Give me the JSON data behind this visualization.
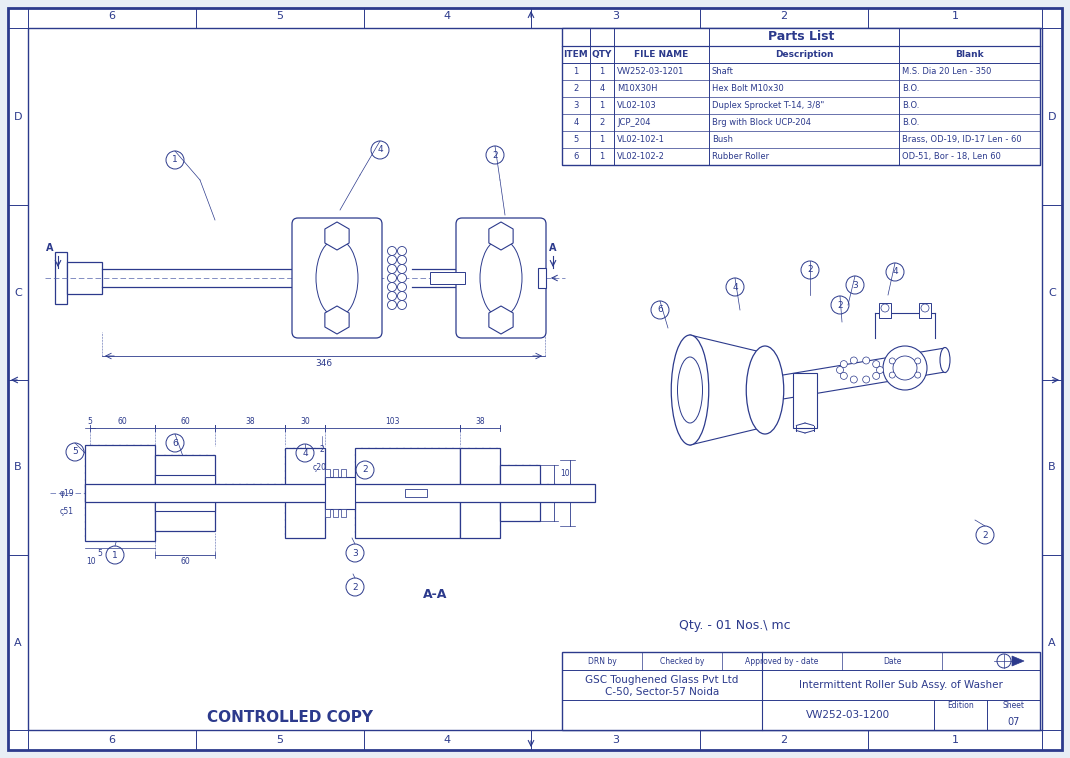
{
  "bg_color": "#e8eef5",
  "drawing_area_color": "#f0f4f8",
  "line_color": "#2c3a8c",
  "border_color": "#2c3a8c",
  "white": "#ffffff",
  "title": "CONTROLLED COPY",
  "parts_list_title": "Parts List",
  "parts_list_headers": [
    "ITEM",
    "QTY",
    "FILE NAME",
    "Description",
    "Blank"
  ],
  "parts_list_rows": [
    [
      "1",
      "1",
      "VW252-03-1201",
      "Shaft",
      "M.S. Dia 20 Len - 350"
    ],
    [
      "2",
      "4",
      "M10X30H",
      "Hex Bolt M10x30",
      "B.O."
    ],
    [
      "3",
      "1",
      "VL02-103",
      "Duplex Sprocket T-14, 3/8\"",
      "B.O."
    ],
    [
      "4",
      "2",
      "JCP_204",
      "Brg with Block UCP-204",
      "B.O."
    ],
    [
      "5",
      "1",
      "VL02-102-1",
      "Bush",
      "Brass, OD-19, ID-17 Len - 60"
    ],
    [
      "6",
      "1",
      "VL02-102-2",
      "Rubber Roller",
      "OD-51, Bor - 18, Len 60"
    ]
  ],
  "title_block": {
    "company": "GSC Toughened Glass Pvt Ltd",
    "address": "C-50, Sector-57 Noida",
    "drawing_title": "Intermittent Roller Sub Assy. of Washer",
    "drawing_number": "VW252-03-1200",
    "edition_label": "Edition",
    "sheet_label": "Sheet",
    "sheet_number": "07",
    "drn_by": "DRN by",
    "checked_by": "Checked by",
    "approved_by": "Approved by - date",
    "date": "Date"
  },
  "row_labels_top": [
    "6",
    "5",
    "4",
    "3",
    "2",
    "1"
  ],
  "col_labels_left": [
    "D",
    "C",
    "B",
    "A"
  ],
  "qty_text": "Qty. - 01 Nos.\\ mc",
  "section_label": "A-A",
  "dim_346": "346",
  "hatch_color": "#3a4a9a",
  "dim_color": "#2c3a8c"
}
